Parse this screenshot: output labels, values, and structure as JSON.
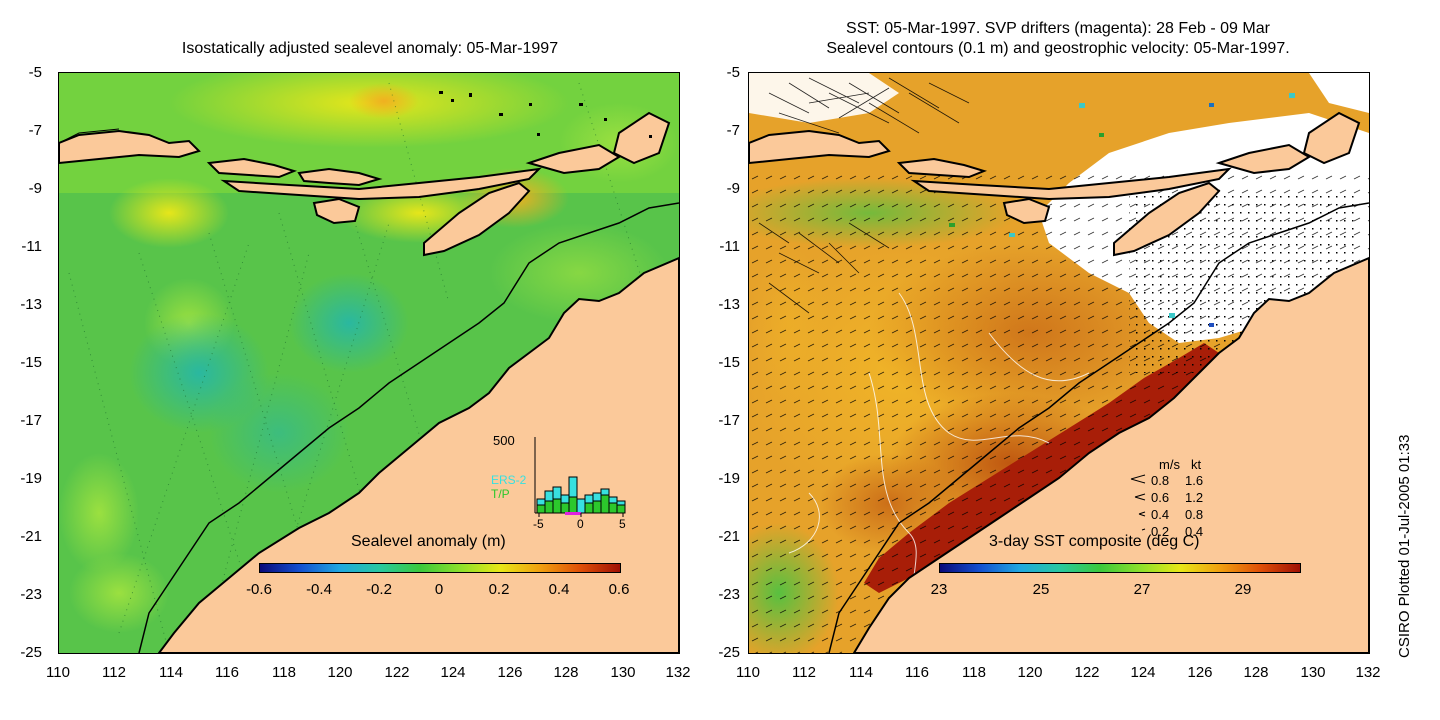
{
  "left_panel": {
    "title": "Isostatically adjusted sealevel anomaly: 05-Mar-1997",
    "y_ticks": [
      "-5",
      "-7",
      "-9",
      "-11",
      "-13",
      "-15",
      "-17",
      "-19",
      "-21",
      "-23",
      "-25"
    ],
    "x_ticks": [
      "110",
      "112",
      "114",
      "116",
      "118",
      "120",
      "122",
      "124",
      "126",
      "128",
      "130",
      "132"
    ],
    "colorbar": {
      "label": "Sealevel anomaly (m)",
      "ticks": [
        "-0.6",
        "-0.4",
        "-0.2",
        "0",
        "0.2",
        "0.4",
        "0.6"
      ]
    },
    "histogram": {
      "top_label": "500",
      "series_a": "ERS-2",
      "series_b": "T/P",
      "x_ticks": [
        "-5",
        "0",
        "5"
      ]
    }
  },
  "right_panel": {
    "title_line1": "SST: 05-Mar-1997. SVP drifters (magenta): 28 Feb - 09 Mar",
    "title_line2": "Sealevel contours (0.1 m) and geostrophic velocity: 05-Mar-1997.",
    "y_ticks": [
      "-5",
      "-7",
      "-9",
      "-11",
      "-13",
      "-15",
      "-17",
      "-19",
      "-21",
      "-23",
      "-25"
    ],
    "x_ticks": [
      "110",
      "112",
      "114",
      "116",
      "118",
      "120",
      "122",
      "124",
      "126",
      "128",
      "130",
      "132"
    ],
    "colorbar": {
      "label": "3-day SST composite (deg C)",
      "ticks": [
        "23",
        "25",
        "27",
        "29"
      ]
    },
    "velocity_legend": {
      "header_ms": "m/s",
      "header_kt": "kt",
      "rows": [
        {
          "ms": "0.8",
          "kt": "1.6"
        },
        {
          "ms": "0.6",
          "kt": "1.2"
        },
        {
          "ms": "0.4",
          "kt": "0.8"
        },
        {
          "ms": "0.2",
          "kt": "0.4"
        }
      ]
    }
  },
  "stamp": "CSIRO Plotted 01-Jul-2005 01:33",
  "colors": {
    "land": "#fbc99a",
    "ocean_green": "#4ec84a",
    "ocean_light": "#8fdc3a",
    "sst_warm": "#e8a018",
    "sst_hot": "#a81e08",
    "cloud": "#ffffff"
  }
}
